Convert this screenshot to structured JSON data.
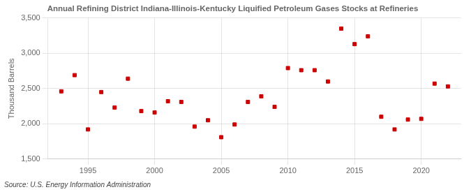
{
  "chart_data": {
    "type": "scatter",
    "title": "Annual Refining District Indiana-Illinois-Kentucky Liquified Petroleum Gases Stocks at Refineries",
    "ylabel": "Thousand Barrels",
    "annotations": [
      "Source: U.S. Energy Information Administration"
    ],
    "x": [
      1993,
      1994,
      1995,
      1996,
      1997,
      1998,
      1999,
      2000,
      2001,
      2002,
      2003,
      2004,
      2005,
      2006,
      2007,
      2008,
      2009,
      2010,
      2011,
      2012,
      2013,
      2014,
      2015,
      2016,
      2017,
      2018,
      2019,
      2020,
      2021,
      2022
    ],
    "values": [
      2460,
      2690,
      1920,
      2450,
      2230,
      2640,
      2180,
      2160,
      2320,
      2310,
      1960,
      2050,
      1810,
      1990,
      2310,
      2390,
      2240,
      2790,
      2760,
      2760,
      2600,
      3350,
      3130,
      3240,
      2100,
      1920,
      2060,
      2070,
      2570,
      2530
    ],
    "color": "#cc0000",
    "marker": "square",
    "xlim": [
      1992.0,
      2023.0
    ],
    "xticks": [
      1995,
      2000,
      2005,
      2010,
      2015,
      2020
    ],
    "ylim": [
      1500,
      3500
    ],
    "yticks": [
      {
        "value": 1500,
        "label": "1,500"
      },
      {
        "value": 2000,
        "label": "2,000"
      },
      {
        "value": 2500,
        "label": "2,500"
      },
      {
        "value": 3000,
        "label": "3,000"
      },
      {
        "value": 3500,
        "label": "3,500"
      }
    ],
    "grid": true
  }
}
